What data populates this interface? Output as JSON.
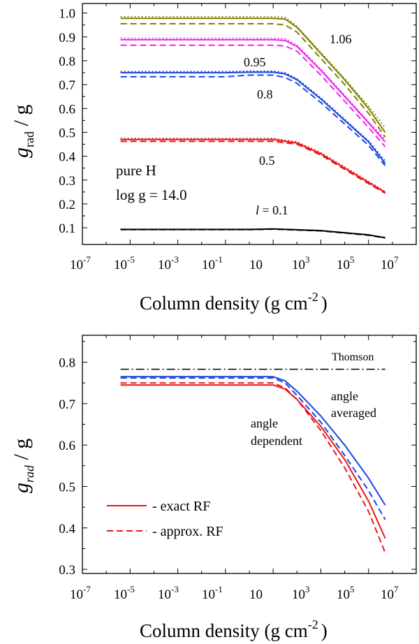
{
  "chart_data": [
    {
      "type": "line",
      "panel": "top",
      "xscale": "log",
      "xlim_exp": [
        -7,
        7
      ],
      "ylim": [
        0.03,
        1.04
      ],
      "x_ticks": [
        {
          "base": "10",
          "exp": "-7"
        },
        {
          "base": "10",
          "exp": "-5"
        },
        {
          "base": "10",
          "exp": "-3"
        },
        {
          "base": "10",
          "exp": "-1"
        },
        {
          "base": "10",
          "exp": ""
        },
        {
          "base": "10",
          "exp": "3"
        },
        {
          "base": "10",
          "exp": "5"
        },
        {
          "base": "10",
          "exp": "7"
        }
      ],
      "y_ticks": [
        "0.1",
        "0.2",
        "0.3",
        "0.4",
        "0.5",
        "0.6",
        "0.7",
        "0.8",
        "0.9",
        "1.0"
      ],
      "xlabel": {
        "main": "Column density  (g cm",
        "exp": "-2",
        "close": ")"
      },
      "ylabel": {
        "g": "g",
        "sub": "rad",
        "rest": " / g"
      },
      "annotations": {
        "line1": "pure H",
        "line2": "log g = 14.0",
        "l_symbol": "l",
        "l_value": " = 0.1",
        "lbl_1_06": "1.06",
        "lbl_0_95": "0.95",
        "lbl_0_8": "0.8",
        "lbl_0_5": "0.5"
      },
      "series": [
        {
          "name": "l = 1.06",
          "color": "#808000",
          "x_log": [
            -5.4,
            0,
            1,
            1.5,
            2,
            3,
            4,
            5,
            5.7
          ],
          "solid": [
            0.978,
            0.978,
            0.978,
            0.975,
            0.94,
            0.83,
            0.72,
            0.6,
            0.5
          ],
          "dashed": [
            0.955,
            0.955,
            0.955,
            0.95,
            0.92,
            0.81,
            0.7,
            0.58,
            0.48
          ],
          "dotted": [
            0.985,
            0.985,
            0.985,
            0.982,
            0.945,
            0.835,
            0.725,
            0.61,
            0.52
          ]
        },
        {
          "name": "l = 0.95",
          "color": "#ee22ee",
          "x_log": [
            -5.4,
            0,
            1,
            1.5,
            2,
            3,
            4,
            5,
            5.7
          ],
          "solid": [
            0.888,
            0.888,
            0.888,
            0.885,
            0.86,
            0.76,
            0.65,
            0.54,
            0.46
          ],
          "dashed": [
            0.865,
            0.865,
            0.865,
            0.862,
            0.84,
            0.74,
            0.63,
            0.52,
            0.44
          ],
          "dotted": [
            0.895,
            0.895,
            0.895,
            0.892,
            0.865,
            0.765,
            0.655,
            0.545,
            0.47
          ]
        },
        {
          "name": "l = 0.8",
          "color": "#1a44e0",
          "x_log": [
            -5.4,
            -1,
            0,
            1,
            1.5,
            2,
            3,
            4,
            5,
            5.7
          ],
          "solid": [
            0.75,
            0.75,
            0.752,
            0.752,
            0.745,
            0.72,
            0.64,
            0.55,
            0.46,
            0.37
          ],
          "dashed": [
            0.733,
            0.733,
            0.74,
            0.74,
            0.73,
            0.705,
            0.625,
            0.535,
            0.445,
            0.36
          ],
          "dotted": [
            0.755,
            0.755,
            0.757,
            0.757,
            0.75,
            0.725,
            0.645,
            0.555,
            0.465,
            0.38
          ]
        },
        {
          "name": "l = 0.5",
          "color": "#e81818",
          "x_log": [
            -5.4,
            0,
            1,
            2,
            3,
            4,
            5,
            5.7
          ],
          "solid": [
            0.47,
            0.47,
            0.47,
            0.455,
            0.41,
            0.35,
            0.29,
            0.248
          ],
          "dashed": [
            0.462,
            0.462,
            0.462,
            0.45,
            0.405,
            0.345,
            0.285,
            0.245
          ],
          "dotted": [
            0.475,
            0.475,
            0.475,
            0.46,
            0.415,
            0.355,
            0.295,
            0.252
          ]
        },
        {
          "name": "l = 0.1",
          "color": "#000000",
          "x_log": [
            -5.4,
            0,
            1,
            3,
            5,
            5.7
          ],
          "solid": [
            0.093,
            0.093,
            0.095,
            0.088,
            0.07,
            0.058
          ],
          "dashed": [
            0.092,
            0.092,
            0.094,
            0.087,
            0.069,
            0.057
          ],
          "dotted": [
            0.094,
            0.094,
            0.096,
            0.089,
            0.071,
            0.059
          ]
        }
      ]
    },
    {
      "type": "line",
      "panel": "bottom",
      "xscale": "log",
      "xlim_exp": [
        -7,
        7
      ],
      "ylim": [
        0.29,
        0.865
      ],
      "x_ticks": [
        {
          "base": "10",
          "exp": "-7"
        },
        {
          "base": "10",
          "exp": "-5"
        },
        {
          "base": "10",
          "exp": "-3"
        },
        {
          "base": "10",
          "exp": "-1"
        },
        {
          "base": "10",
          "exp": ""
        },
        {
          "base": "10",
          "exp": "3"
        },
        {
          "base": "10",
          "exp": "5"
        },
        {
          "base": "10",
          "exp": "7"
        }
      ],
      "y_ticks": [
        "0.3",
        "0.4",
        "0.5",
        "0.6",
        "0.7",
        "0.8"
      ],
      "xlabel": {
        "main": "Column density  (g cm",
        "exp": "-2",
        "close": ")"
      },
      "ylabel": {
        "g": "g",
        "sub": "rad",
        "rest": " / g"
      },
      "annotations": {
        "thomson": "Thomson",
        "angle_averaged_1": "angle",
        "angle_averaged_2": "averaged",
        "angle_dependent_1": "angle",
        "angle_dependent_2": "dependent"
      },
      "legend": [
        {
          "label": "- exact RF",
          "style": "solid",
          "color": "#e81818"
        },
        {
          "label": "- approx. RF",
          "style": "dashed",
          "color": "#e81818"
        }
      ],
      "thomson_value": 0.783,
      "thomson_x_log": [
        -5.4,
        5.7
      ],
      "series": [
        {
          "name": "angle averaged",
          "color": "#1a44e0",
          "x_log": [
            -5.4,
            0,
            1,
            1.5,
            2,
            3,
            4,
            5,
            5.7
          ],
          "solid": [
            0.765,
            0.765,
            0.765,
            0.755,
            0.73,
            0.67,
            0.6,
            0.52,
            0.455
          ],
          "dashed": [
            0.762,
            0.762,
            0.762,
            0.75,
            0.72,
            0.655,
            0.575,
            0.49,
            0.42
          ]
        },
        {
          "name": "angle dependent",
          "color": "#e81818",
          "x_log": [
            -5.4,
            0,
            1,
            1.5,
            2,
            3,
            4,
            5,
            5.7
          ],
          "solid": [
            0.745,
            0.745,
            0.745,
            0.735,
            0.71,
            0.645,
            0.565,
            0.465,
            0.375
          ],
          "dashed": [
            0.75,
            0.75,
            0.75,
            0.738,
            0.71,
            0.635,
            0.545,
            0.44,
            0.34
          ]
        }
      ]
    }
  ]
}
